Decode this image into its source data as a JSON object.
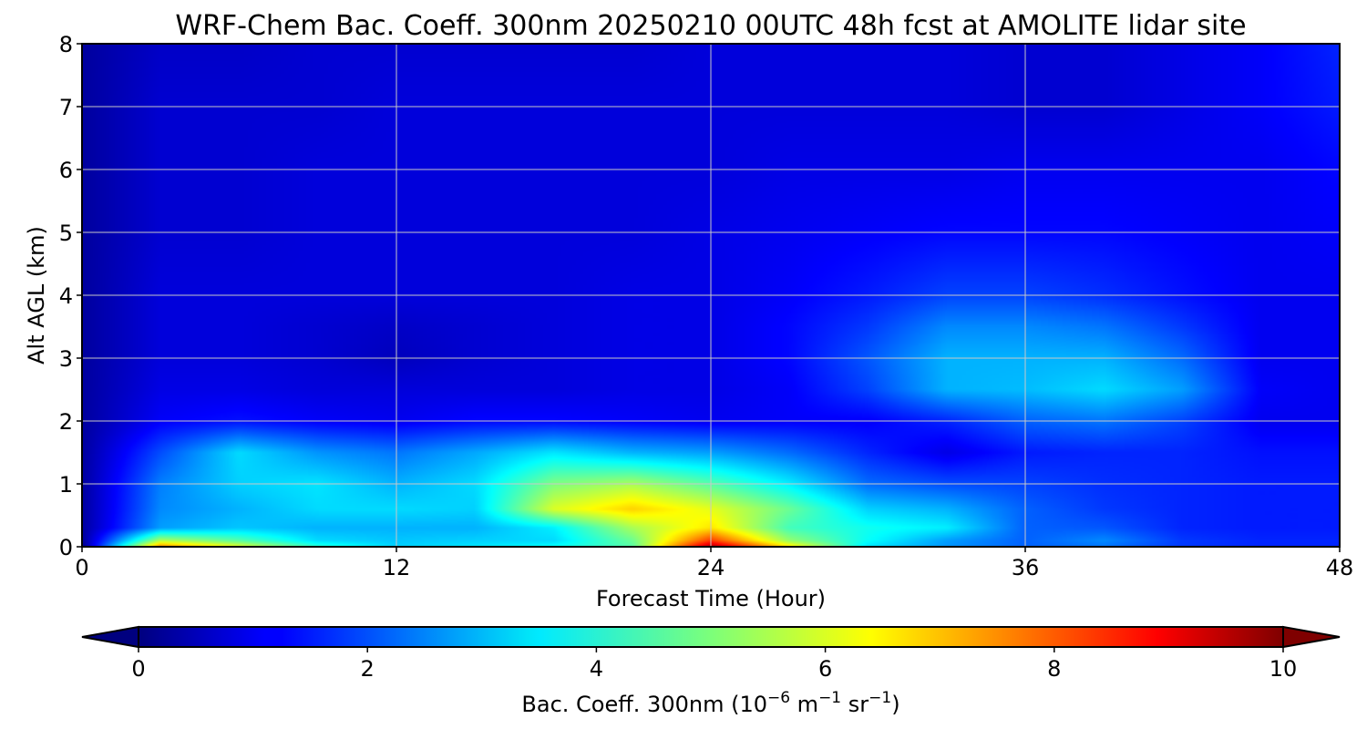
{
  "chart_data": {
    "type": "heatmap",
    "title": "WRF-Chem Bac. Coeff. 300nm  20250210 00UTC 48h fcst at AMOLITE lidar site",
    "xlabel": "Forecast Time (Hour)",
    "ylabel": "Alt AGL (km)",
    "xlim": [
      0,
      48
    ],
    "ylim": [
      0,
      8
    ],
    "x_ticks": [
      "0",
      "12",
      "24",
      "36",
      "48"
    ],
    "y_ticks": [
      "0",
      "1",
      "2",
      "3",
      "4",
      "5",
      "6",
      "7",
      "8"
    ],
    "grid": true,
    "colorscale": "jet",
    "colorbar": {
      "label_main": "Bac. Coeff. 300nm  (10",
      "label_exp1": "−6",
      "label_mid": " m",
      "label_exp2": "−1",
      "label_mid2": " sr",
      "label_exp3": "−1",
      "label_end": ")",
      "range": [
        0,
        10
      ],
      "ticks": [
        "0",
        "2",
        "4",
        "6",
        "8",
        "10"
      ],
      "extend": "both"
    },
    "x": [
      0,
      3,
      6,
      9,
      12,
      15,
      18,
      21,
      24,
      27,
      30,
      33,
      36,
      39,
      42,
      45,
      48
    ],
    "y": [
      0,
      0.1,
      0.3,
      0.6,
      1.0,
      1.5,
      2.0,
      2.5,
      3.0,
      3.5,
      4.0,
      5.0,
      6.0,
      7.0,
      8.0
    ],
    "z": [
      [
        0.0,
        7.5,
        6.0,
        4.2,
        3.3,
        3.5,
        3.8,
        4.6,
        9.6,
        6.5,
        3.5,
        2.7,
        2.2,
        2.4,
        1.8,
        1.6,
        1.6
      ],
      [
        0.2,
        5.5,
        4.6,
        3.4,
        3.2,
        3.3,
        3.4,
        4.8,
        8.2,
        5.2,
        3.8,
        2.8,
        2.2,
        2.6,
        1.8,
        1.6,
        1.6
      ],
      [
        0.3,
        2.8,
        3.2,
        3.0,
        3.0,
        3.0,
        3.6,
        5.4,
        6.5,
        4.4,
        3.9,
        3.6,
        2.2,
        2.1,
        1.6,
        1.5,
        1.5
      ],
      [
        0.3,
        2.6,
        3.0,
        3.4,
        3.4,
        3.3,
        5.9,
        6.7,
        6.0,
        4.8,
        3.3,
        3.0,
        2.2,
        1.8,
        1.6,
        1.5,
        1.5
      ],
      [
        0.3,
        2.5,
        3.3,
        3.5,
        3.0,
        3.4,
        5.0,
        5.4,
        4.6,
        3.6,
        2.3,
        2.0,
        1.9,
        1.7,
        1.6,
        1.5,
        1.5
      ],
      [
        0.3,
        2.0,
        3.4,
        2.7,
        2.4,
        2.9,
        3.5,
        3.0,
        2.8,
        2.3,
        1.6,
        1.0,
        1.5,
        1.6,
        1.6,
        1.4,
        1.4
      ],
      [
        0.3,
        1.2,
        1.4,
        1.2,
        1.1,
        1.3,
        1.3,
        1.2,
        1.1,
        1.2,
        1.2,
        1.6,
        2.2,
        2.4,
        1.9,
        1.1,
        1.1
      ],
      [
        0.3,
        1.0,
        1.0,
        0.9,
        0.9,
        0.9,
        0.9,
        1.0,
        1.0,
        1.2,
        1.9,
        3.0,
        3.1,
        3.4,
        2.8,
        1.2,
        1.1
      ],
      [
        0.3,
        0.9,
        0.9,
        0.8,
        0.6,
        0.8,
        0.9,
        1.0,
        1.0,
        1.3,
        2.1,
        3.0,
        3.0,
        3.0,
        2.3,
        1.1,
        1.1
      ],
      [
        0.3,
        0.9,
        0.9,
        0.8,
        0.7,
        0.8,
        0.9,
        1.0,
        1.0,
        1.3,
        1.8,
        2.6,
        2.6,
        2.4,
        1.8,
        1.1,
        1.1
      ],
      [
        0.3,
        0.9,
        0.9,
        0.9,
        0.9,
        0.9,
        0.9,
        1.0,
        1.0,
        1.2,
        1.5,
        1.9,
        1.9,
        1.7,
        1.4,
        1.1,
        1.1
      ],
      [
        0.3,
        0.8,
        0.8,
        0.9,
        0.9,
        0.9,
        0.9,
        0.9,
        1.0,
        1.1,
        1.2,
        1.3,
        1.3,
        1.3,
        1.2,
        1.1,
        1.2
      ],
      [
        0.3,
        0.8,
        0.8,
        0.9,
        0.9,
        0.9,
        0.9,
        0.9,
        0.9,
        1.0,
        1.0,
        1.0,
        1.1,
        1.1,
        1.1,
        1.1,
        1.3
      ],
      [
        0.3,
        0.8,
        0.8,
        0.8,
        0.9,
        0.9,
        0.9,
        0.9,
        0.9,
        0.9,
        0.9,
        0.9,
        0.8,
        0.8,
        1.0,
        1.2,
        1.5
      ],
      [
        0.3,
        0.7,
        0.7,
        0.8,
        0.8,
        0.8,
        0.8,
        0.8,
        0.9,
        0.9,
        0.9,
        0.9,
        0.8,
        0.8,
        1.0,
        1.2,
        1.6
      ]
    ]
  }
}
